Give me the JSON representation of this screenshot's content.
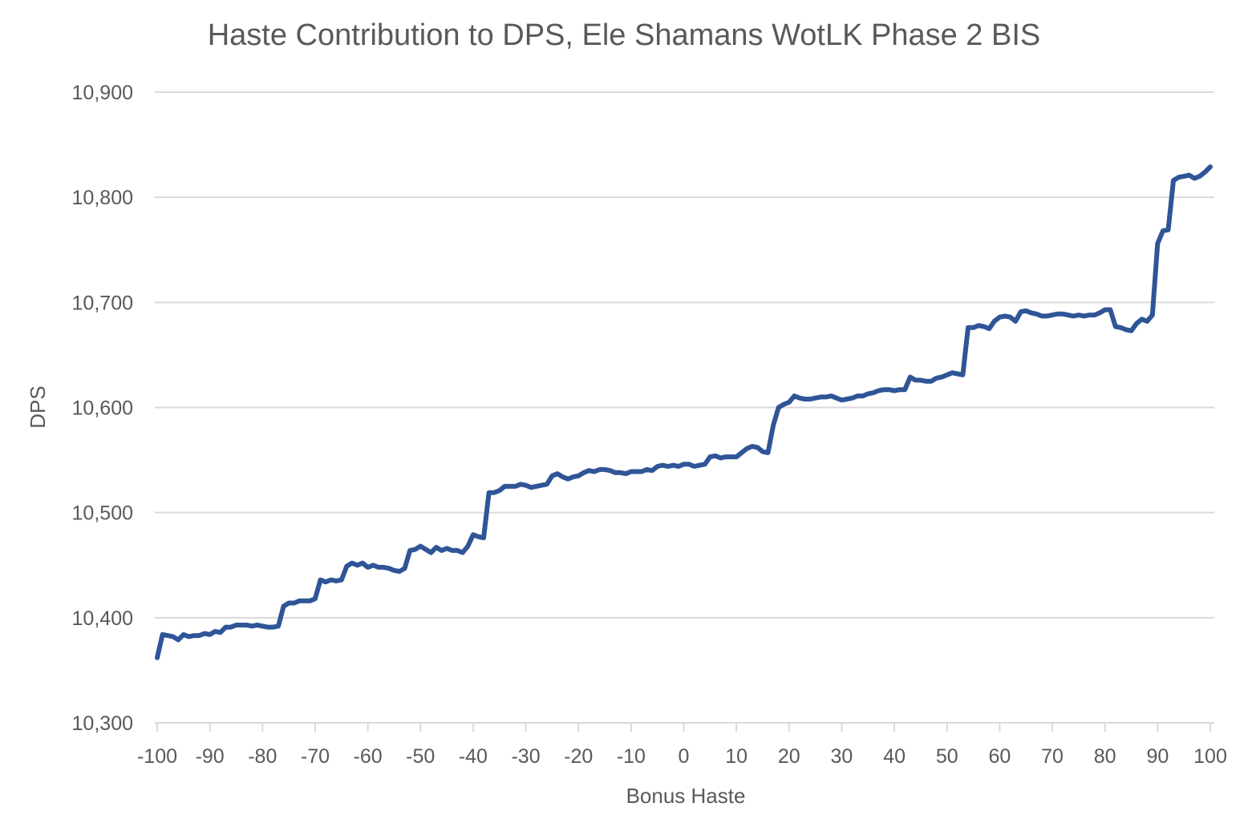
{
  "chart_data": {
    "type": "line",
    "title": "Haste Contribution to DPS, Ele Shamans WotLK Phase 2 BIS",
    "xlabel": "Bonus Haste",
    "ylabel": "DPS",
    "xlim": [
      -100,
      100
    ],
    "ylim": [
      10300,
      10900
    ],
    "x_ticks": [
      -100,
      -90,
      -80,
      -70,
      -60,
      -50,
      -40,
      -30,
      -20,
      -10,
      0,
      10,
      20,
      30,
      40,
      50,
      60,
      70,
      80,
      90,
      100
    ],
    "x_tick_labels": [
      "-100",
      "-90",
      "-80",
      "-70",
      "-60",
      "-50",
      "-40",
      "-30",
      "-20",
      "-10",
      "0",
      "10",
      "20",
      "30",
      "40",
      "50",
      "60",
      "70",
      "80",
      "90",
      "100"
    ],
    "y_ticks": [
      10300,
      10400,
      10500,
      10600,
      10700,
      10800,
      10900
    ],
    "y_tick_labels": [
      "10,300",
      "10,400",
      "10,500",
      "10,600",
      "10,700",
      "10,800",
      "10,900"
    ],
    "grid": true,
    "legend": "none",
    "colors": {
      "series": "#2F5597",
      "grid": "#d9d9d9",
      "text": "#595959"
    },
    "series": [
      {
        "name": "DPS",
        "x": [
          -100,
          -99,
          -98,
          -97,
          -96,
          -95,
          -94,
          -93,
          -92,
          -91,
          -90,
          -89,
          -88,
          -87,
          -86,
          -85,
          -84,
          -83,
          -82,
          -81,
          -80,
          -79,
          -78,
          -77,
          -76,
          -75,
          -74,
          -73,
          -72,
          -71,
          -70,
          -69,
          -68,
          -67,
          -66,
          -65,
          -64,
          -63,
          -62,
          -61,
          -60,
          -59,
          -58,
          -57,
          -56,
          -55,
          -54,
          -53,
          -52,
          -51,
          -50,
          -49,
          -48,
          -47,
          -46,
          -45,
          -44,
          -43,
          -42,
          -41,
          -40,
          -39,
          -38,
          -37,
          -36,
          -35,
          -34,
          -33,
          -32,
          -31,
          -30,
          -29,
          -28,
          -27,
          -26,
          -25,
          -24,
          -23,
          -22,
          -21,
          -20,
          -19,
          -18,
          -17,
          -16,
          -15,
          -14,
          -13,
          -12,
          -11,
          -10,
          -9,
          -8,
          -7,
          -6,
          -5,
          -4,
          -3,
          -2,
          -1,
          0,
          1,
          2,
          3,
          4,
          5,
          6,
          7,
          8,
          9,
          10,
          11,
          12,
          13,
          14,
          15,
          16,
          17,
          18,
          19,
          20,
          21,
          22,
          23,
          24,
          25,
          26,
          27,
          28,
          29,
          30,
          31,
          32,
          33,
          34,
          35,
          36,
          37,
          38,
          39,
          40,
          41,
          42,
          43,
          44,
          45,
          46,
          47,
          48,
          49,
          50,
          51,
          52,
          53,
          54,
          55,
          56,
          57,
          58,
          59,
          60,
          61,
          62,
          63,
          64,
          65,
          66,
          67,
          68,
          69,
          70,
          71,
          72,
          73,
          74,
          75,
          76,
          77,
          78,
          79,
          80,
          81,
          82,
          83,
          84,
          85,
          86,
          87,
          88,
          89,
          90,
          91,
          92,
          93,
          94,
          95,
          96,
          97,
          98,
          99,
          100
        ],
        "y": [
          10362,
          10384,
          10383,
          10382,
          10379,
          10384,
          10382,
          10383,
          10383,
          10385,
          10384,
          10387,
          10386,
          10391,
          10391,
          10393,
          10393,
          10393,
          10392,
          10393,
          10392,
          10391,
          10391,
          10392,
          10411,
          10414,
          10414,
          10416,
          10416,
          10416,
          10418,
          10436,
          10434,
          10436,
          10435,
          10436,
          10449,
          10452,
          10450,
          10452,
          10448,
          10450,
          10448,
          10448,
          10447,
          10445,
          10444,
          10447,
          10464,
          10465,
          10468,
          10465,
          10462,
          10467,
          10464,
          10466,
          10464,
          10464,
          10462,
          10468,
          10479,
          10477,
          10476,
          10519,
          10519,
          10521,
          10525,
          10525,
          10525,
          10527,
          10526,
          10524,
          10525,
          10526,
          10527,
          10535,
          10537,
          10534,
          10532,
          10534,
          10535,
          10538,
          10540,
          10539,
          10541,
          10541,
          10540,
          10538,
          10538,
          10537,
          10539,
          10539,
          10539,
          10541,
          10540,
          10544,
          10545,
          10544,
          10545,
          10544,
          10546,
          10546,
          10544,
          10545,
          10546,
          10553,
          10554,
          10552,
          10553,
          10553,
          10553,
          10557,
          10561,
          10563,
          10562,
          10558,
          10557,
          10583,
          10600,
          10603,
          10605,
          10611,
          10609,
          10608,
          10608,
          10609,
          10610,
          10610,
          10611,
          10609,
          10607,
          10608,
          10609,
          10611,
          10611,
          10613,
          10614,
          10616,
          10617,
          10617,
          10616,
          10617,
          10617,
          10629,
          10626,
          10626,
          10625,
          10625,
          10628,
          10629,
          10631,
          10633,
          10632,
          10631,
          10676,
          10676,
          10678,
          10677,
          10675,
          10682,
          10686,
          10687,
          10686,
          10682,
          10691,
          10692,
          10690,
          10689,
          10687,
          10687,
          10688,
          10689,
          10689,
          10688,
          10687,
          10688,
          10687,
          10688,
          10688,
          10690,
          10693,
          10693,
          10677,
          10676,
          10674,
          10673,
          10680,
          10684,
          10682,
          10688,
          10756,
          10768,
          10769,
          10816,
          10819,
          10820,
          10821,
          10818,
          10820,
          10824,
          10829
        ]
      }
    ]
  }
}
